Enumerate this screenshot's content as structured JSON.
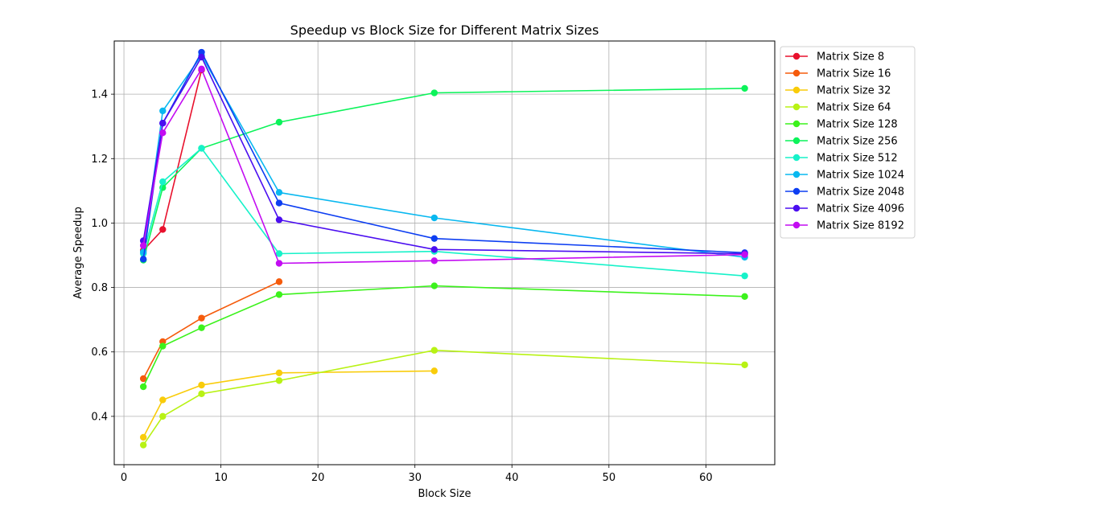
{
  "chart_data": {
    "type": "line",
    "title": "Speedup vs Block Size for Different Matrix Sizes",
    "xlabel": "Block Size",
    "ylabel": "Average Speedup",
    "xlim": [
      -1,
      67.1
    ],
    "ylim": [
      0.25,
      1.565
    ],
    "xticks": [
      0,
      10,
      20,
      30,
      40,
      50,
      60
    ],
    "yticks": [
      0.4,
      0.6,
      0.8,
      1.0,
      1.2,
      1.4
    ],
    "ytick_labels": [
      "0.4",
      "0.6",
      "0.8",
      "1.0",
      "1.2",
      "1.4"
    ],
    "grid": true,
    "legend_position": "outside-right-top",
    "series": [
      {
        "name": "Matrix Size 8",
        "color": "#e8112d",
        "x": [
          2,
          4,
          8
        ],
        "y": [
          0.915,
          0.98,
          1.475
        ]
      },
      {
        "name": "Matrix Size 16",
        "color": "#f55b0c",
        "x": [
          2,
          4,
          8,
          16
        ],
        "y": [
          0.517,
          0.632,
          0.705,
          0.818
        ]
      },
      {
        "name": "Matrix Size 32",
        "color": "#f9cc0a",
        "x": [
          2,
          4,
          8,
          16,
          32
        ],
        "y": [
          0.335,
          0.451,
          0.497,
          0.535,
          0.541
        ]
      },
      {
        "name": "Matrix Size 64",
        "color": "#b8f214",
        "x": [
          2,
          4,
          8,
          16,
          32,
          64
        ],
        "y": [
          0.311,
          0.4,
          0.47,
          0.511,
          0.605,
          0.56
        ]
      },
      {
        "name": "Matrix Size 128",
        "color": "#3cf21c",
        "x": [
          2,
          4,
          8,
          16,
          32,
          64
        ],
        "y": [
          0.492,
          0.618,
          0.675,
          0.778,
          0.805,
          0.772
        ]
      },
      {
        "name": "Matrix Size 256",
        "color": "#0cf35a",
        "x": [
          2,
          4,
          8,
          16,
          32,
          64
        ],
        "y": [
          0.885,
          1.11,
          1.232,
          1.313,
          1.404,
          1.418
        ]
      },
      {
        "name": "Matrix Size 512",
        "color": "#16f2c9",
        "x": [
          2,
          4,
          8,
          16,
          32,
          64
        ],
        "y": [
          0.905,
          1.128,
          1.232,
          0.905,
          0.912,
          0.836
        ]
      },
      {
        "name": "Matrix Size 1024",
        "color": "#09b8f0",
        "x": [
          2,
          4,
          8,
          16,
          32,
          64
        ],
        "y": [
          0.91,
          1.348,
          1.52,
          1.095,
          1.016,
          0.894
        ]
      },
      {
        "name": "Matrix Size 2048",
        "color": "#0d3ef2",
        "x": [
          2,
          4,
          8,
          16,
          32,
          64
        ],
        "y": [
          0.888,
          1.31,
          1.53,
          1.062,
          0.952,
          0.908
        ]
      },
      {
        "name": "Matrix Size 4096",
        "color": "#4b0ef0",
        "x": [
          2,
          4,
          8,
          16,
          32,
          64
        ],
        "y": [
          0.945,
          1.31,
          1.515,
          1.01,
          0.918,
          0.905
        ]
      },
      {
        "name": "Matrix Size 8192",
        "color": "#c30cf2",
        "x": [
          2,
          4,
          8,
          16,
          32,
          64
        ],
        "y": [
          0.93,
          1.28,
          1.478,
          0.875,
          0.883,
          0.902
        ]
      }
    ]
  }
}
